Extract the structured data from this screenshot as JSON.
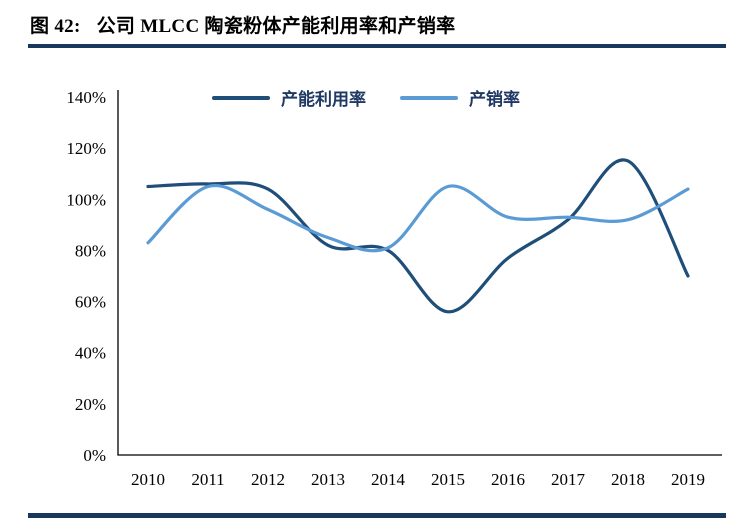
{
  "figure": {
    "label": "图 42:",
    "title": "公司 MLCC 陶瓷粉体产能利用率和产销率"
  },
  "colors": {
    "rule": "#17375E",
    "axis": "#000000",
    "tick_text": "#000000",
    "legend_text": "#1F3864"
  },
  "chart_data": {
    "type": "line",
    "smooth": true,
    "grid": false,
    "legend_position": "top",
    "x_labels": [
      "2010",
      "2011",
      "2012",
      "2013",
      "2014",
      "2015",
      "2016",
      "2017",
      "2018",
      "2019"
    ],
    "ylim": [
      0,
      140
    ],
    "y_ticks": {
      "values": [
        0,
        20,
        40,
        60,
        80,
        100,
        120,
        140
      ],
      "labels": [
        "0%",
        "20%",
        "40%",
        "60%",
        "80%",
        "100%",
        "120%",
        "140%"
      ]
    },
    "series": [
      {
        "key": "capacity-utilization",
        "name": "产能利用率",
        "color": "#1F4E79",
        "values": [
          105,
          106,
          104,
          82,
          80,
          56,
          77,
          92,
          115,
          70
        ]
      },
      {
        "key": "production-sales-ratio",
        "name": "产销率",
        "color": "#5B9BD5",
        "values": [
          83,
          105,
          96,
          85,
          81,
          105,
          93,
          93,
          92,
          104
        ]
      }
    ]
  }
}
